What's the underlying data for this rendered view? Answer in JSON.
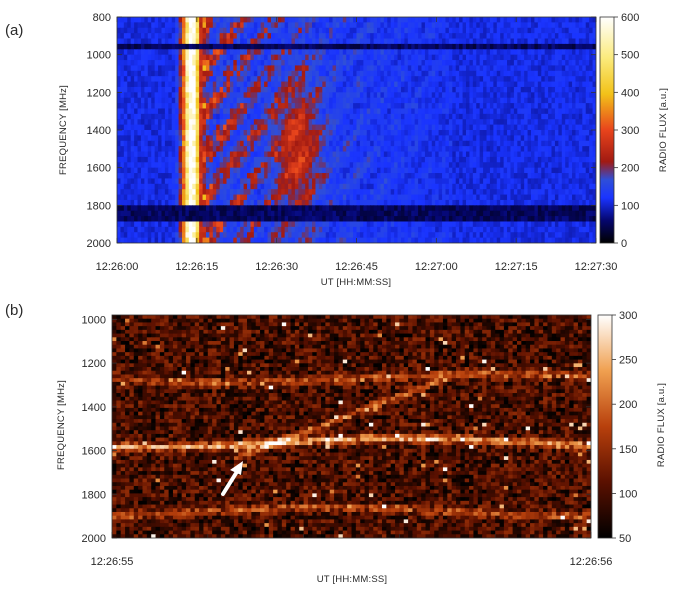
{
  "chart_data": [
    {
      "type": "heatmap",
      "panel_label": "(a)",
      "xlabel": "UT [HH:MM:SS]",
      "ylabel": "FREQUENCY [MHz]",
      "colorbar_label": "RADIO FLUX [a.u.]",
      "x_tick_labels": [
        "12:26:00",
        "12:26:15",
        "12:26:30",
        "12:26:45",
        "12:27:00",
        "12:27:15",
        "12:27:30"
      ],
      "x_range_seconds_after_12_26_00": [
        0,
        90
      ],
      "y_ticks": [
        800,
        1000,
        1200,
        1400,
        1600,
        1800,
        2000
      ],
      "ylim": [
        2000,
        800
      ],
      "colorbar_ticks": [
        0,
        100,
        200,
        300,
        400,
        500,
        600
      ],
      "colorbar_range": [
        0,
        600
      ],
      "colormap": "blue-red-yellow-white",
      "features": {
        "background_flux": 110,
        "main_burst": {
          "start": "12:26:12",
          "peak": "12:26:14",
          "end": "12:26:17",
          "peak_flux": 600
        },
        "emission_end": "12:27:03",
        "horizontal_lines_mhz": [
          950,
          1820,
          1860
        ]
      }
    },
    {
      "type": "heatmap",
      "panel_label": "(b)",
      "xlabel": "UT [HH:MM:SS]",
      "ylabel": "FREQUENCY [MHz]",
      "colorbar_label": "RADIO FLUX [a.u.]",
      "x_tick_labels": [
        "12:26:55",
        "12:26:56"
      ],
      "x_range": [
        "12:26:55",
        "12:26:56"
      ],
      "y_ticks": [
        1000,
        1200,
        1400,
        1600,
        1800,
        2000
      ],
      "ylim": [
        2000,
        980
      ],
      "colorbar_ticks": [
        50,
        100,
        150,
        200,
        250,
        300
      ],
      "colorbar_range": [
        50,
        300
      ],
      "colormap": "black-red-orange-white",
      "features": {
        "background_flux": 110,
        "bright_lanes_mhz": [
          1270,
          1565,
          1880
        ],
        "drifting_lane_mhz": {
          "start": 1640,
          "end": 1270
        },
        "arrow_mhz": 1600
      }
    }
  ]
}
